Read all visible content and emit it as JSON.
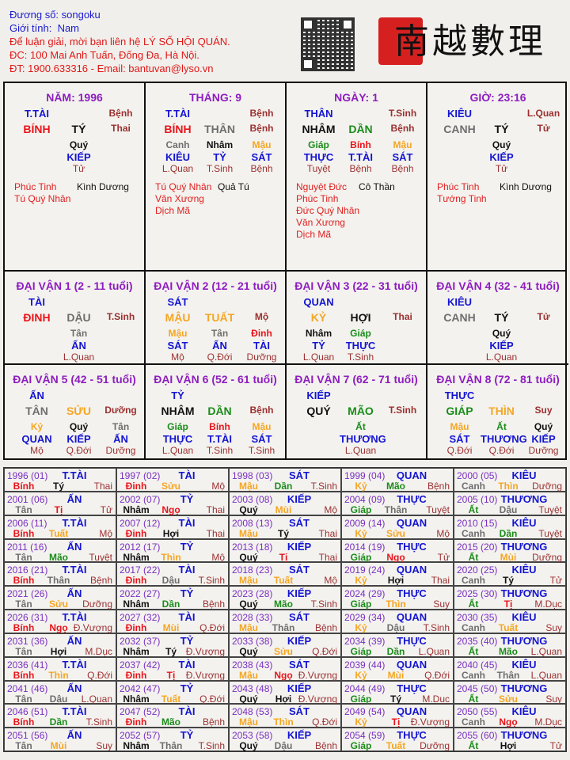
{
  "header": {
    "name_label": "Đương số: songoku",
    "gender_label": "Giới tính:",
    "gender_value": "Nam",
    "contact_line1": "Để luận giải, mời bạn liên hệ LÝ SỐ HỘI QUÁN.",
    "contact_line2": "ĐC: 100 Mai Anh Tuấn, Đống Đa, Hà Nội.",
    "contact_line3": "ĐT: 1900.633316 - Email: bantuvan@lyso.vn",
    "logo_text": "南越數理"
  },
  "colors": {
    "fire": "#e8141a",
    "earth": "#f5a623",
    "metal": "#6e6e6e",
    "water": "#111111",
    "wood": "#1a8c1a",
    "god": "#1414d2",
    "stage": "#9b3030",
    "title": "#8e1dc0"
  },
  "element_of": {
    "giáp": "wood",
    "ất": "wood",
    "dần": "wood",
    "mão": "wood",
    "bính": "fire",
    "đinh": "fire",
    "tị": "fire",
    "ngọ": "fire",
    "mậu": "earth",
    "kỷ": "earth",
    "sửu": "earth",
    "thìn": "earth",
    "mùi": "earth",
    "tuất": "earth",
    "canh": "metal",
    "tân": "metal",
    "thân": "metal",
    "dậu": "metal",
    "nhâm": "water",
    "quý": "water",
    "tý": "water",
    "hợi": "water"
  },
  "pillars": [
    {
      "title": "NĂM: 1996",
      "god": "T.TÀI",
      "stage_top": "Bệnh",
      "stem": "BÍNH",
      "branch": "TÝ",
      "stage": "Thai",
      "hidden": [
        {
          "stem": "Quý",
          "god": "KIẾP",
          "stage": "Tử"
        }
      ],
      "stars_left": [
        "Phúc Tinh",
        "Tú Quý Nhân"
      ],
      "stars_right": [
        "Kình Dương"
      ]
    },
    {
      "title": "THÁNG: 9",
      "god": "T.TÀI",
      "stage_top": "Bệnh",
      "stem": "BÍNH",
      "branch": "THÂN",
      "stage": "Bệnh",
      "hidden": [
        {
          "stem": "Canh",
          "god": "KIÊU",
          "stage": "L.Quan"
        },
        {
          "stem": "Nhâm",
          "god": "TỶ",
          "stage": "T.Sinh"
        },
        {
          "stem": "Mậu",
          "god": "SÁT",
          "stage": "Bệnh"
        }
      ],
      "stars_left": [
        "Tú Quý Nhân",
        "Văn Xương",
        "Dịch Mã"
      ],
      "stars_right": [
        "Quả Tú"
      ]
    },
    {
      "title": "NGÀY: 1",
      "god": "THÂN",
      "stage_top": "T.Sinh",
      "stem": "NHÂM",
      "branch": "DẦN",
      "stage": "Bệnh",
      "hidden": [
        {
          "stem": "Giáp",
          "god": "THỰC",
          "stage": "Tuyệt"
        },
        {
          "stem": "Bính",
          "god": "T.TÀI",
          "stage": "Bệnh"
        },
        {
          "stem": "Mậu",
          "god": "SÁT",
          "stage": "Bệnh"
        }
      ],
      "stars_left": [
        "Nguyệt Đức",
        "Phúc Tinh",
        "Đức Quý Nhân",
        "Văn Xương",
        "Dịch Mã"
      ],
      "stars_right": [
        "Cô Thần"
      ]
    },
    {
      "title": "GIỜ: 23:16",
      "god": "KIÊU",
      "stage_top": "L.Quan",
      "stem": "CANH",
      "branch": "TÝ",
      "stage": "Tử",
      "hidden": [
        {
          "stem": "Quý",
          "god": "KIẾP",
          "stage": "Tử"
        }
      ],
      "stars_left": [
        "Phúc Tinh",
        "Tướng Tinh"
      ],
      "stars_right": [
        "Kình Dương"
      ]
    }
  ],
  "dai_van": [
    {
      "title": "ĐẠI VẬN 1 (2 - 11 tuổi)",
      "god": "TÀI",
      "stem": "ĐINH",
      "branch": "DẬU",
      "stage": "T.Sinh",
      "hidden": [
        {
          "stem": "Tân",
          "god": "ẤN",
          "stage": "L.Quan"
        }
      ]
    },
    {
      "title": "ĐẠI VẬN 2 (12 - 21 tuổi)",
      "god": "SÁT",
      "stem": "MẬU",
      "branch": "TUẤT",
      "stage": "Mộ",
      "hidden": [
        {
          "stem": "Mậu",
          "god": "SÁT",
          "stage": "Mộ"
        },
        {
          "stem": "Tân",
          "god": "ẤN",
          "stage": "Q.Đới"
        },
        {
          "stem": "Đinh",
          "god": "TÀI",
          "stage": "Dưỡng"
        }
      ]
    },
    {
      "title": "ĐẠI VẬN 3 (22 - 31 tuổi)",
      "god": "QUAN",
      "stem": "KỶ",
      "branch": "HỢI",
      "stage": "Thai",
      "hidden": [
        {
          "stem": "Nhâm",
          "god": "TỶ",
          "stage": "L.Quan"
        },
        {
          "stem": "Giáp",
          "god": "THỰC",
          "stage": "T.Sinh"
        }
      ]
    },
    {
      "title": "ĐẠI VẬN 4 (32 - 41 tuổi)",
      "god": "KIÊU",
      "stem": "CANH",
      "branch": "TÝ",
      "stage": "Tử",
      "hidden": [
        {
          "stem": "Quý",
          "god": "KIẾP",
          "stage": "L.Quan"
        }
      ]
    },
    {
      "title": "ĐẠI VẬN 5 (42 - 51 tuổi)",
      "god": "ẤN",
      "stem": "TÂN",
      "branch": "SỬU",
      "stage": "Dưỡng",
      "hidden": [
        {
          "stem": "Kỷ",
          "god": "QUAN",
          "stage": "Mộ"
        },
        {
          "stem": "Quý",
          "god": "KIẾP",
          "stage": "Q.Đới"
        },
        {
          "stem": "Tân",
          "god": "ẤN",
          "stage": "Dưỡng"
        }
      ]
    },
    {
      "title": "ĐẠI VẬN 6 (52 - 61 tuổi)",
      "god": "TỶ",
      "stem": "NHÂM",
      "branch": "DẦN",
      "stage": "Bệnh",
      "hidden": [
        {
          "stem": "Giáp",
          "god": "THỰC",
          "stage": "L.Quan"
        },
        {
          "stem": "Bính",
          "god": "T.TÀI",
          "stage": "T.Sinh"
        },
        {
          "stem": "Mậu",
          "god": "SÁT",
          "stage": "T.Sinh"
        }
      ]
    },
    {
      "title": "ĐẠI VẬN 7 (62 - 71 tuổi)",
      "god": "KIẾP",
      "stem": "QUÝ",
      "branch": "MÃO",
      "stage": "T.Sinh",
      "hidden": [
        {
          "stem": "Ất",
          "god": "THƯƠNG",
          "stage": "L.Quan"
        }
      ]
    },
    {
      "title": "ĐẠI VẬN 8 (72 - 81 tuổi)",
      "god": "THỰC",
      "stem": "GIÁP",
      "branch": "THÌN",
      "stage": "Suy",
      "hidden": [
        {
          "stem": "Mậu",
          "god": "SÁT",
          "stage": "Q.Đới"
        },
        {
          "stem": "Ất",
          "god": "THƯƠNG",
          "stage": "Q.Đới"
        },
        {
          "stem": "Quý",
          "god": "KIẾP",
          "stage": "Dưỡng"
        }
      ]
    }
  ],
  "annual": [
    [
      "1996 (01)",
      "T.TÀI",
      "Bính",
      "Tý",
      "Thai"
    ],
    [
      "1997 (02)",
      "TÀI",
      "Đinh",
      "Sửu",
      "Mộ"
    ],
    [
      "1998 (03)",
      "SÁT",
      "Mậu",
      "Dần",
      "T.Sinh"
    ],
    [
      "1999 (04)",
      "QUAN",
      "Kỷ",
      "Mão",
      "Bệnh"
    ],
    [
      "2000 (05)",
      "KIÊU",
      "Canh",
      "Thìn",
      "Dưỡng"
    ],
    [
      "2001 (06)",
      "ẤN",
      "Tân",
      "Tị",
      "Tử"
    ],
    [
      "2002 (07)",
      "TỶ",
      "Nhâm",
      "Ngọ",
      "Thai"
    ],
    [
      "2003 (08)",
      "KIẾP",
      "Quý",
      "Mùi",
      "Mộ"
    ],
    [
      "2004 (09)",
      "THỰC",
      "Giáp",
      "Thân",
      "Tuyệt"
    ],
    [
      "2005 (10)",
      "THƯƠNG",
      "Ất",
      "Dậu",
      "Tuyệt"
    ],
    [
      "2006 (11)",
      "T.TÀI",
      "Bính",
      "Tuất",
      "Mộ"
    ],
    [
      "2007 (12)",
      "TÀI",
      "Đinh",
      "Hợi",
      "Thai"
    ],
    [
      "2008 (13)",
      "SÁT",
      "Mậu",
      "Tý",
      "Thai"
    ],
    [
      "2009 (14)",
      "QUAN",
      "Kỷ",
      "Sửu",
      "Mộ"
    ],
    [
      "2010 (15)",
      "KIÊU",
      "Canh",
      "Dần",
      "Tuyệt"
    ],
    [
      "2011 (16)",
      "ẤN",
      "Tân",
      "Mão",
      "Tuyệt"
    ],
    [
      "2012 (17)",
      "TỶ",
      "Nhâm",
      "Thìn",
      "Mộ"
    ],
    [
      "2013 (18)",
      "KIẾP",
      "Quý",
      "Tị",
      "Thai"
    ],
    [
      "2014 (19)",
      "THỰC",
      "Giáp",
      "Ngọ",
      "Tử"
    ],
    [
      "2015 (20)",
      "THƯƠNG",
      "Ất",
      "Mùi",
      "Dưỡng"
    ],
    [
      "2016 (21)",
      "T.TÀI",
      "Bính",
      "Thân",
      "Bệnh"
    ],
    [
      "2017 (22)",
      "TÀI",
      "Đinh",
      "Dậu",
      "T.Sinh"
    ],
    [
      "2018 (23)",
      "SÁT",
      "Mậu",
      "Tuất",
      "Mộ"
    ],
    [
      "2019 (24)",
      "QUAN",
      "Kỷ",
      "Hợi",
      "Thai"
    ],
    [
      "2020 (25)",
      "KIÊU",
      "Canh",
      "Tý",
      "Tử"
    ],
    [
      "2021 (26)",
      "ẤN",
      "Tân",
      "Sửu",
      "Dưỡng"
    ],
    [
      "2022 (27)",
      "TỶ",
      "Nhâm",
      "Dần",
      "Bệnh"
    ],
    [
      "2023 (28)",
      "KIẾP",
      "Quý",
      "Mão",
      "T.Sinh"
    ],
    [
      "2024 (29)",
      "THỰC",
      "Giáp",
      "Thìn",
      "Suy"
    ],
    [
      "2025 (30)",
      "THƯƠNG",
      "Ất",
      "Tị",
      "M.Dục"
    ],
    [
      "2026 (31)",
      "T.TÀI",
      "Bính",
      "Ngọ",
      "Đ.Vượng"
    ],
    [
      "2027 (32)",
      "TÀI",
      "Đinh",
      "Mùi",
      "Q.Đới"
    ],
    [
      "2028 (33)",
      "SÁT",
      "Mậu",
      "Thân",
      "Bệnh"
    ],
    [
      "2029 (34)",
      "QUAN",
      "Kỷ",
      "Dậu",
      "T.Sinh"
    ],
    [
      "2030 (35)",
      "KIÊU",
      "Canh",
      "Tuất",
      "Suy"
    ],
    [
      "2031 (36)",
      "ẤN",
      "Tân",
      "Hợi",
      "M.Dục"
    ],
    [
      "2032 (37)",
      "TỶ",
      "Nhâm",
      "Tý",
      "Đ.Vượng"
    ],
    [
      "2033 (38)",
      "KIẾP",
      "Quý",
      "Sửu",
      "Q.Đới"
    ],
    [
      "2034 (39)",
      "THỰC",
      "Giáp",
      "Dần",
      "L.Quan"
    ],
    [
      "2035 (40)",
      "THƯƠNG",
      "Ất",
      "Mão",
      "L.Quan"
    ],
    [
      "2036 (41)",
      "T.TÀI",
      "Bính",
      "Thìn",
      "Q.Đới"
    ],
    [
      "2037 (42)",
      "TÀI",
      "Đinh",
      "Tị",
      "Đ.Vượng"
    ],
    [
      "2038 (43)",
      "SÁT",
      "Mậu",
      "Ngọ",
      "Đ.Vượng"
    ],
    [
      "2039 (44)",
      "QUAN",
      "Kỷ",
      "Mùi",
      "Q.Đới"
    ],
    [
      "2040 (45)",
      "KIÊU",
      "Canh",
      "Thân",
      "L.Quan"
    ],
    [
      "2041 (46)",
      "ẤN",
      "Tân",
      "Dậu",
      "L.Quan"
    ],
    [
      "2042 (47)",
      "TỶ",
      "Nhâm",
      "Tuất",
      "Q.Đới"
    ],
    [
      "2043 (48)",
      "KIẾP",
      "Quý",
      "Hợi",
      "Đ.Vượng"
    ],
    [
      "2044 (49)",
      "THỰC",
      "Giáp",
      "Tý",
      "M.Dục"
    ],
    [
      "2045 (50)",
      "THƯƠNG",
      "Ất",
      "Sửu",
      "Suy"
    ],
    [
      "2046 (51)",
      "T.TÀI",
      "Bính",
      "Dần",
      "T.Sinh"
    ],
    [
      "2047 (52)",
      "TÀI",
      "Đinh",
      "Mão",
      "Bệnh"
    ],
    [
      "2048 (53)",
      "SÁT",
      "Mậu",
      "Thìn",
      "Q.Đới"
    ],
    [
      "2049 (54)",
      "QUAN",
      "Kỷ",
      "Tị",
      "Đ.Vượng"
    ],
    [
      "2050 (55)",
      "KIÊU",
      "Canh",
      "Ngọ",
      "M.Dục"
    ],
    [
      "2051 (56)",
      "ẤN",
      "Tân",
      "Mùi",
      "Suy"
    ],
    [
      "2052 (57)",
      "TỶ",
      "Nhâm",
      "Thân",
      "T.Sinh"
    ],
    [
      "2053 (58)",
      "KIẾP",
      "Quý",
      "Dậu",
      "Bệnh"
    ],
    [
      "2054 (59)",
      "THỰC",
      "Giáp",
      "Tuất",
      "Dưỡng"
    ],
    [
      "2055 (60)",
      "THƯƠNG",
      "Ất",
      "Hợi",
      "Tử"
    ]
  ]
}
